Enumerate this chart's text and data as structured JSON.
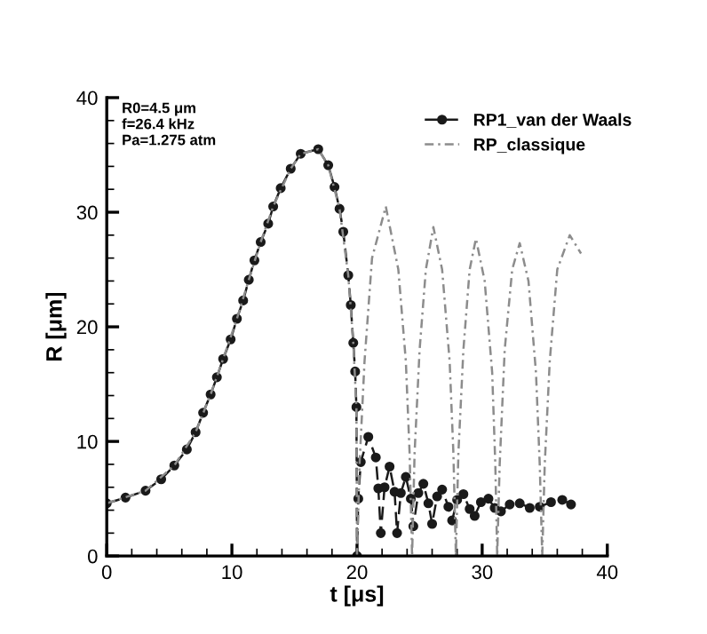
{
  "chart_data": {
    "type": "line",
    "xlabel": "t [μs]",
    "ylabel": "R [μm]",
    "annotations": [
      "R0=4.5 μm",
      "f=26.4 kHz",
      "Pa=1.275 atm"
    ],
    "xlim": [
      0,
      40
    ],
    "ylim": [
      0,
      40
    ],
    "xticks": [
      0,
      10,
      20,
      30,
      40
    ],
    "yticks": [
      0,
      10,
      20,
      30,
      40
    ],
    "grid": false,
    "legend": "top right",
    "series": [
      {
        "name": "RP1_van der Waals",
        "color": "#1a1a1a",
        "marker": "circle",
        "line_style": "dashed",
        "x": [
          0,
          1.5,
          3.1,
          4.35,
          5.4,
          6.4,
          7.1,
          7.7,
          8.3,
          8.8,
          9.3,
          9.9,
          10.4,
          10.9,
          11.35,
          11.8,
          12.3,
          12.9,
          13.3,
          13.9,
          14.7,
          15.5,
          16.9,
          17.7,
          18.2,
          18.6,
          18.9,
          19.3,
          19.5,
          19.7,
          19.85,
          19.95,
          20.0,
          20.1,
          20.3,
          20.9,
          21.5,
          21.7,
          21.9,
          22.2,
          22.6,
          23.0,
          23.2,
          23.5,
          23.9,
          24.3,
          24.5,
          24.9,
          25.3,
          25.7,
          26.0,
          26.4,
          26.8,
          27.3,
          27.6,
          28.0,
          28.5,
          29.0,
          29.4,
          29.9,
          30.5,
          31.0,
          31.5,
          32.2,
          33.0,
          33.8,
          34.6,
          35.5,
          36.4,
          37.1
        ],
        "values": [
          4.6,
          5.1,
          5.7,
          6.7,
          7.9,
          9.3,
          10.8,
          12.5,
          14.1,
          15.6,
          17.2,
          18.9,
          20.7,
          22.3,
          24.1,
          25.8,
          27.4,
          29.0,
          30.5,
          32.1,
          33.8,
          35.1,
          35.5,
          34.1,
          32.2,
          30.3,
          28.3,
          24.5,
          21.9,
          18.6,
          16.1,
          13.0,
          0,
          5.0,
          8.2,
          10.4,
          8.6,
          5.9,
          2.0,
          6.0,
          7.8,
          5.6,
          2.0,
          5.5,
          6.9,
          5.0,
          2.6,
          5.5,
          6.3,
          4.6,
          2.8,
          5.2,
          5.8,
          4.3,
          3.1,
          4.9,
          5.4,
          4.1,
          3.5,
          4.7,
          5.0,
          4.2,
          3.9,
          4.5,
          4.6,
          4.2,
          4.3,
          4.7,
          4.9,
          4.5
        ]
      },
      {
        "name": "RP_classique",
        "color": "#8c8c8c",
        "marker": "none",
        "line_style": "dotted",
        "x": [
          0,
          3.1,
          5.4,
          7.1,
          8.3,
          9.3,
          10.4,
          11.35,
          12.3,
          13.3,
          14.7,
          15.5,
          16.9,
          17.7,
          18.6,
          19.3,
          19.7,
          19.95,
          20.0,
          20.2,
          20.6,
          21.2,
          22.3,
          23.3,
          23.9,
          24.2,
          24.4,
          24.6,
          25.0,
          25.5,
          26.1,
          26.8,
          27.4,
          27.7,
          27.9,
          28.1,
          28.5,
          29.0,
          29.5,
          30.2,
          30.8,
          31.05,
          31.2,
          31.4,
          31.8,
          32.4,
          33.0,
          33.7,
          34.3,
          34.6,
          34.8,
          35.0,
          35.4,
          36.0,
          37.0,
          37.9
        ],
        "values": [
          4.6,
          5.7,
          7.9,
          10.8,
          14.1,
          17.2,
          20.7,
          24.1,
          27.4,
          30.5,
          33.8,
          35.1,
          35.5,
          34.1,
          30.3,
          24.5,
          18.6,
          13.0,
          0,
          8,
          17,
          26,
          30.5,
          25,
          17,
          9,
          0,
          9,
          18,
          25,
          28.7,
          25,
          17,
          9,
          0,
          9,
          18,
          25,
          27.7,
          24,
          16,
          8,
          0,
          8,
          18,
          25,
          27.3,
          24,
          16,
          8,
          0,
          8,
          17,
          25,
          28,
          26.4
        ]
      }
    ]
  }
}
